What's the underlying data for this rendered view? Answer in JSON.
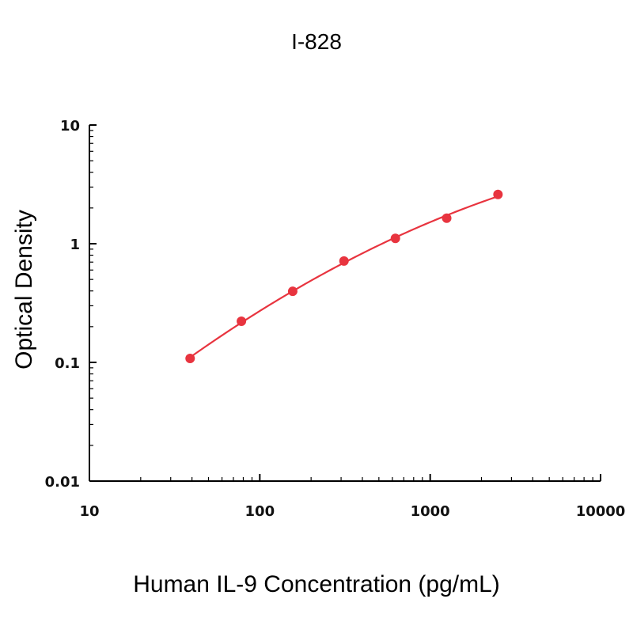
{
  "chart_data": {
    "type": "scatter",
    "title": "I-828",
    "xlabel": "Human IL-9 Concentration (pg/mL)",
    "ylabel": "Optical Density",
    "x_scale": "log",
    "y_scale": "log",
    "xlim": [
      10,
      10000
    ],
    "ylim": [
      0.01,
      10
    ],
    "x_ticks": [
      10,
      100,
      1000,
      10000
    ],
    "x_tick_labels": [
      "10",
      "100",
      "1000",
      "10000"
    ],
    "y_ticks": [
      0.01,
      0.1,
      1,
      10
    ],
    "y_tick_labels": [
      "0.01",
      "0.1",
      "1",
      "10"
    ],
    "grid": false,
    "legend": "none",
    "color": "#e8343f",
    "series": [
      {
        "x": [
          39,
          78,
          156,
          312,
          625,
          1250,
          2500
        ],
        "y": [
          0.108,
          0.222,
          0.397,
          0.715,
          1.11,
          1.64,
          2.6
        ],
        "fit_curve": true
      }
    ]
  }
}
